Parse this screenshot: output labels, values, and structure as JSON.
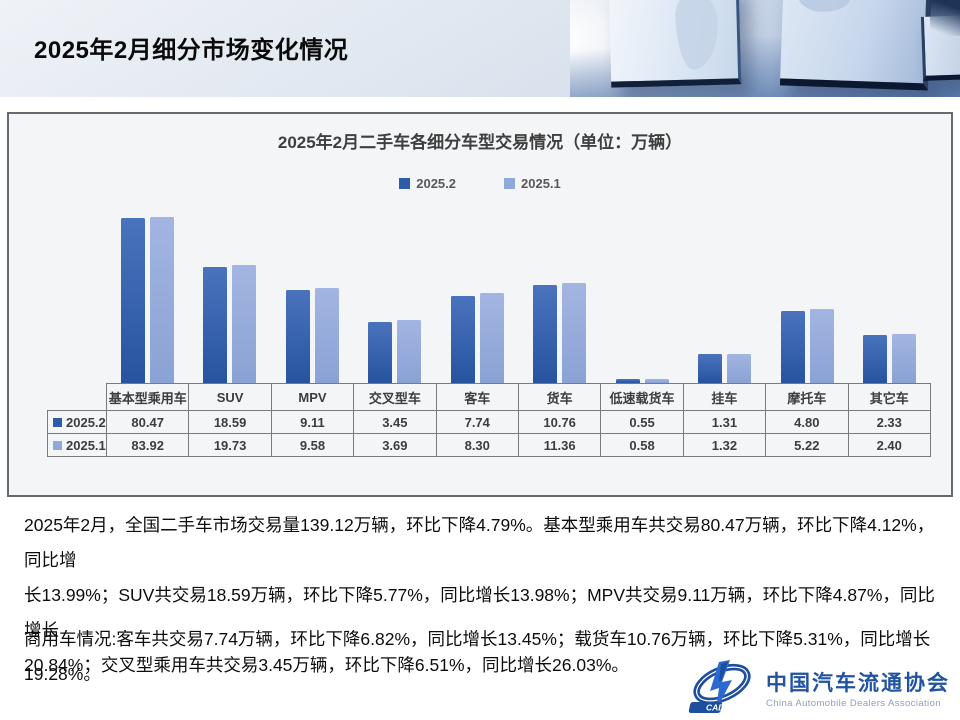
{
  "slide": {
    "title": "2025年2月细分市场变化情况"
  },
  "chart": {
    "title": "2025年2月二手车各细分车型交易情况（单位：万辆）",
    "legend": [
      {
        "label": "2025.2"
      },
      {
        "label": "2025.1"
      }
    ],
    "colors": {
      "series1": "#2e5cac",
      "series2": "#8fa9db"
    }
  },
  "chart_data": {
    "type": "bar",
    "title": "2025年2月二手车各细分车型交易情况（单位：万辆）",
    "categories": [
      "基本型乘用车",
      "SUV",
      "MPV",
      "交叉型车",
      "客车",
      "货车",
      "低速载货车",
      "挂车",
      "摩托车",
      "其它车"
    ],
    "series": [
      {
        "name": "2025.2",
        "values": [
          80.47,
          18.59,
          9.11,
          3.45,
          7.74,
          10.76,
          0.55,
          1.31,
          4.8,
          2.33
        ]
      },
      {
        "name": "2025.1",
        "values": [
          83.92,
          19.73,
          9.58,
          3.69,
          8.3,
          11.36,
          0.58,
          1.32,
          5.22,
          2.4
        ]
      }
    ],
    "xlabel": "",
    "ylabel": "",
    "value_axis_scale": "log",
    "grid": false,
    "legend_position": "top",
    "data_table_shown": true
  },
  "paragraphs": {
    "p1": "2025年2月，全国二手车市场交易量139.12万辆，环比下降4.79%。基本型乘用车共交易80.47万辆，环比下降4.12%，同比增\n长13.99%；SUV共交易18.59万辆，环比下降5.77%，同比增长13.98%；MPV共交易9.11万辆，环比下降4.87%，同比增长\n20.84%；交叉型乘用车共交易3.45万辆，环比下降6.51%，同比增长26.03%。",
    "p2": "商用车情况:客车共交易7.74万辆，环比下降6.82%，同比增长13.45%；载货车10.76万辆，环比下降5.31%，同比增长19.28%。"
  },
  "logo": {
    "abbr": "CADA",
    "cn": "中国汽车流通协会",
    "en": "China Automobile Dealers Association"
  }
}
